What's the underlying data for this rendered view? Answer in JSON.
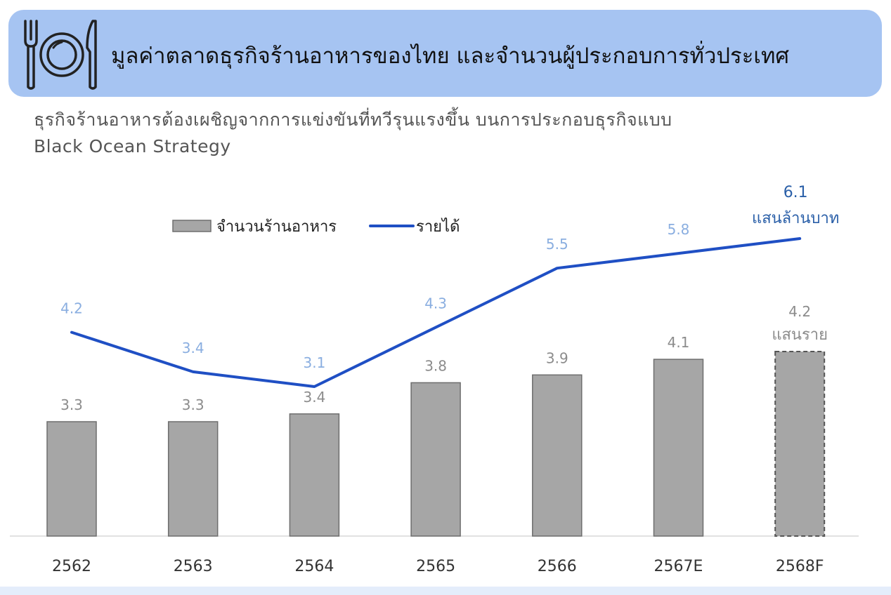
{
  "header": {
    "title": "มูลค่าตลาดธุรกิจร้านอาหารของไทย และจำนวนผู้ประกอบการทั่วประเทศ",
    "icon": "plate-fork-knife-icon"
  },
  "subtitle": {
    "line1": "ธุรกิจร้านอาหารต้องเผชิญจากการแข่งขันที่ทวีรุนแรงขึ้น บนการประกอบธุรกิจแบบ",
    "line2": "Black Ocean Strategy"
  },
  "chart_data": {
    "type": "bar",
    "categories": [
      "2562",
      "2563",
      "2564",
      "2565",
      "2566",
      "2567E",
      "2568F"
    ],
    "series": [
      {
        "name": "จำนวนร้านอาหาร",
        "type": "bar",
        "values": [
          3.3,
          3.3,
          3.4,
          3.8,
          3.9,
          4.1,
          4.2
        ],
        "labels": [
          "3.3",
          "3.3",
          "3.4",
          "3.8",
          "3.9",
          "4.1",
          "4.2"
        ],
        "unit_label": "แสนราย",
        "color": "#a6a6a6",
        "forecast_index": 6
      },
      {
        "name": "รายได้",
        "type": "line",
        "values": [
          4.2,
          3.4,
          3.1,
          4.3,
          5.5,
          5.8,
          6.1
        ],
        "labels": [
          "4.2",
          "3.4",
          "3.1",
          "4.3",
          "5.5",
          "5.8",
          "6.1"
        ],
        "unit_label": "แสนล้านบาท",
        "color": "#1f4fc4",
        "label_color": "#8aaee0",
        "last_label_color": "#2a5fa8"
      }
    ],
    "legend": "top-center",
    "grid": false
  }
}
